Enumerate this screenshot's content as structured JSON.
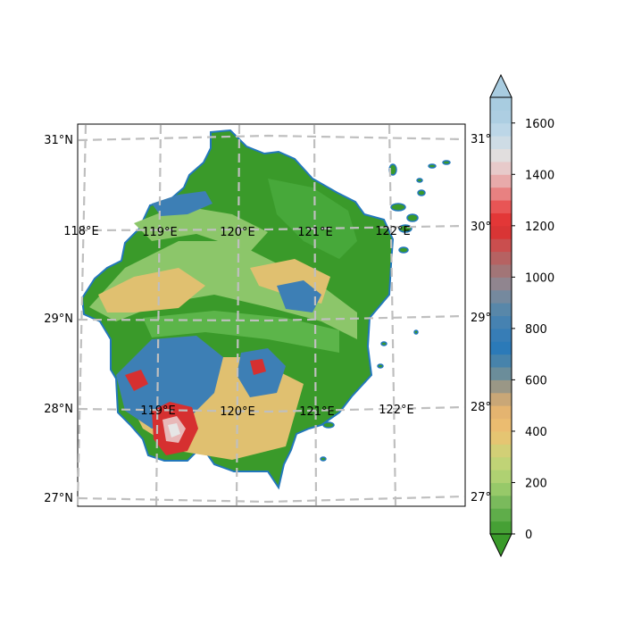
{
  "map": {
    "left_lat_labels": [
      "31°N",
      "29°N",
      "28°N",
      "27°N"
    ],
    "right_lat_labels": [
      "31°",
      "30°",
      "29°",
      "28°",
      "27°"
    ],
    "lon_labels_top": [
      "118°E",
      "119°E",
      "120°E",
      "121°E",
      "122°E"
    ],
    "lon_labels_bottom": [
      "119°E",
      "120°E",
      "121°E",
      "122°E"
    ],
    "gridline_color": "#bfbfbf"
  },
  "colorbar": {
    "tick_labels": [
      "0",
      "200",
      "400",
      "600",
      "800",
      "1000",
      "1200",
      "1400",
      "1600"
    ],
    "ticks": [
      0,
      200,
      400,
      600,
      800,
      1000,
      1200,
      1400,
      1600
    ],
    "range": [
      0,
      1700
    ],
    "extend": "both"
  },
  "colors": {
    "low_green": "#3a9a2a",
    "mid_green": "#8cc66a",
    "tan": "#e0c070",
    "blue": "#3d7fb5",
    "red": "#d63030",
    "pink": "#e8b8b8",
    "pale": "#e6e6e6",
    "light_blue": "#a8cce0",
    "outline": "#2277bb"
  }
}
